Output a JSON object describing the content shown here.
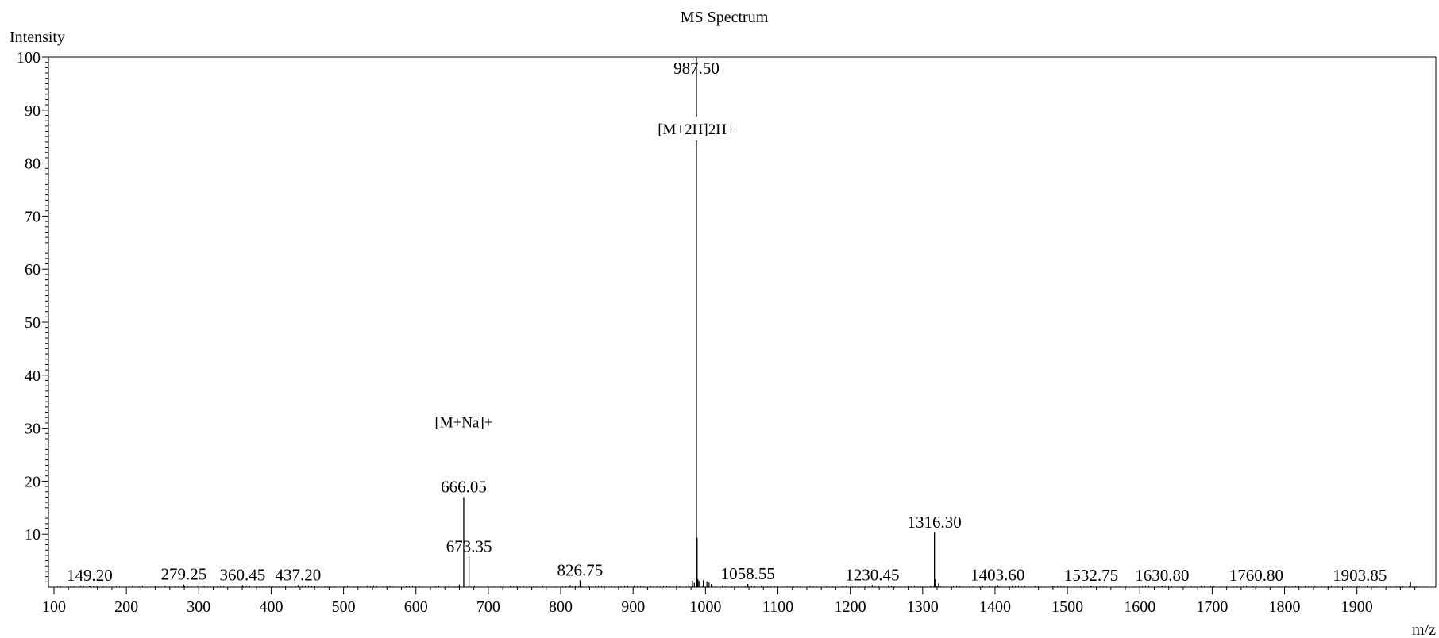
{
  "chart_data": {
    "type": "bar",
    "title": "MS Spectrum",
    "xlabel": "m/z",
    "ylabel": "Intensity",
    "xlim": [
      90,
      1990
    ],
    "ylim": [
      0,
      100
    ],
    "x_ticks": [
      100,
      200,
      300,
      400,
      500,
      600,
      700,
      800,
      900,
      1000,
      1100,
      1200,
      1300,
      1400,
      1500,
      1600,
      1700,
      1800,
      1900
    ],
    "y_ticks": [
      10,
      20,
      30,
      40,
      50,
      60,
      70,
      80,
      90,
      100
    ],
    "grid": false,
    "legend": "none",
    "labeled_peaks": [
      {
        "mz": 149.2,
        "intensity": 0.3,
        "label": "149.20"
      },
      {
        "mz": 279.25,
        "intensity": 0.5,
        "label": "279.25"
      },
      {
        "mz": 360.45,
        "intensity": 0.4,
        "label": "360.45"
      },
      {
        "mz": 437.2,
        "intensity": 0.4,
        "label": "437.20"
      },
      {
        "mz": 666.05,
        "intensity": 17.0,
        "label": "666.05"
      },
      {
        "mz": 673.35,
        "intensity": 5.8,
        "label": "673.35"
      },
      {
        "mz": 826.75,
        "intensity": 1.3,
        "label": "826.75"
      },
      {
        "mz": 987.5,
        "intensity": 100.0,
        "label": "987.50"
      },
      {
        "mz": 1058.55,
        "intensity": 0.6,
        "label": "1058.55"
      },
      {
        "mz": 1230.45,
        "intensity": 0.4,
        "label": "1230.45"
      },
      {
        "mz": 1316.3,
        "intensity": 10.3,
        "label": "1316.30"
      },
      {
        "mz": 1403.6,
        "intensity": 0.4,
        "label": "1403.60"
      },
      {
        "mz": 1532.75,
        "intensity": 0.3,
        "label": "1532.75"
      },
      {
        "mz": 1630.8,
        "intensity": 0.3,
        "label": "1630.80"
      },
      {
        "mz": 1760.8,
        "intensity": 0.3,
        "label": "1760.80"
      },
      {
        "mz": 1903.85,
        "intensity": 0.3,
        "label": "1903.85"
      }
    ],
    "minor_peaks": [
      {
        "mz": 982.0,
        "intensity": 1.2
      },
      {
        "mz": 984.6,
        "intensity": 0.8
      },
      {
        "mz": 988.5,
        "intensity": 9.3
      },
      {
        "mz": 989.5,
        "intensity": 1.5
      },
      {
        "mz": 991.0,
        "intensity": 1.2
      },
      {
        "mz": 997.0,
        "intensity": 1.3
      },
      {
        "mz": 1002.0,
        "intensity": 1.1
      },
      {
        "mz": 1005.0,
        "intensity": 0.9
      },
      {
        "mz": 1008.0,
        "intensity": 0.6
      },
      {
        "mz": 1317.5,
        "intensity": 1.5
      },
      {
        "mz": 1322.0,
        "intensity": 0.7
      },
      {
        "mz": 1974.0,
        "intensity": 1.0
      },
      {
        "mz": 977.0,
        "intensity": 0.5
      },
      {
        "mz": 813.0,
        "intensity": 0.4
      },
      {
        "mz": 660.0,
        "intensity": 0.5
      },
      {
        "mz": 1480.0,
        "intensity": 0.3
      }
    ],
    "annotations": [
      {
        "text": "[M+2H]2H+",
        "mz": 987.5,
        "intensity": 85.5
      },
      {
        "text": "[M+Na]+",
        "mz": 666.05,
        "intensity": 30.2
      }
    ]
  }
}
